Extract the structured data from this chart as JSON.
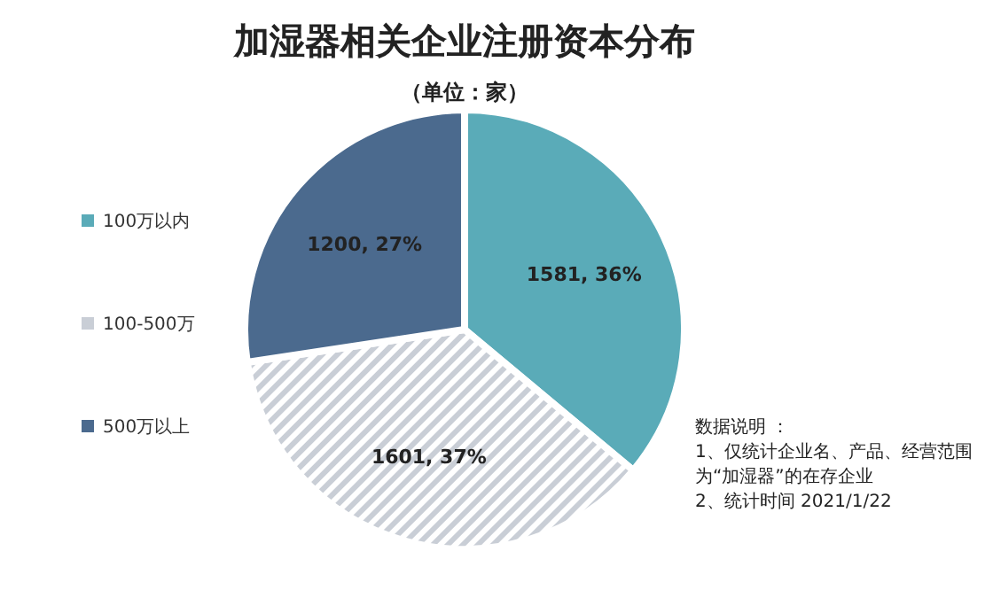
{
  "chart_data": {
    "type": "pie",
    "title": "加湿器相关企业注册资本分布",
    "subtitle": "（单位：家）",
    "categories": [
      "100万以内",
      "100-500万",
      "500万以上"
    ],
    "values": [
      1581,
      1601,
      1200
    ],
    "value_labels": [
      "1581, 36%",
      "1601, 37%",
      "1200, 27%"
    ],
    "colors": [
      "#5aabb8",
      "#c9ced6",
      "#4b6a8e"
    ],
    "legend": "left",
    "annotations": [
      "数据说明 ：",
      "1、仅统计企业名、产品、经营范围为“加湿器”的在存企业",
      "2、统计时间  2021/1/22"
    ]
  }
}
